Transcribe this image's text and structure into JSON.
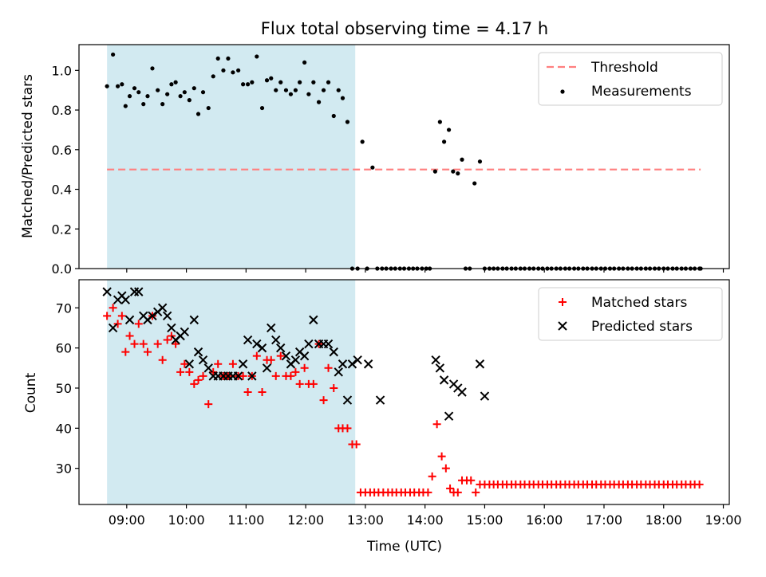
{
  "chart_data": {
    "title": "Flux total observing time = 4.17 h",
    "xlabel": "Time (UTC)",
    "x_tick_labels": [
      "09:00",
      "10:00",
      "11:00",
      "12:00",
      "13:00",
      "14:00",
      "15:00",
      "16:00",
      "17:00",
      "18:00",
      "19:00"
    ],
    "xlim_hours": [
      8.2,
      19.1
    ],
    "observing_window_hours": [
      8.67,
      12.83
    ],
    "colors": {
      "window": "#add8e6",
      "threshold": "#ff7f7f",
      "measurements": "#000000",
      "matched": "#ff0000",
      "predicted": "#000000"
    },
    "panels": [
      {
        "type": "scatter",
        "ylabel": "Matched/Predicted stars",
        "ylim": [
          0,
          1.13
        ],
        "y_ticks": [
          0.0,
          0.2,
          0.4,
          0.6,
          0.8,
          1.0
        ],
        "y_tick_labels": [
          "0.0",
          "0.2",
          "0.4",
          "0.6",
          "0.8",
          "1.0"
        ],
        "legend_position": "top-right",
        "threshold": {
          "name": "Threshold",
          "value": 0.5,
          "x_range": [
            8.67,
            18.62
          ]
        },
        "series": [
          {
            "name": "Measurements",
            "x": [
              8.67,
              8.77,
              8.85,
              8.92,
              8.98,
              9.05,
              9.13,
              9.2,
              9.28,
              9.35,
              9.43,
              9.52,
              9.6,
              9.68,
              9.75,
              9.82,
              9.9,
              9.97,
              10.05,
              10.13,
              10.2,
              10.28,
              10.37,
              10.45,
              10.53,
              10.62,
              10.7,
              10.78,
              10.87,
              10.95,
              11.03,
              11.1,
              11.18,
              11.27,
              11.35,
              11.42,
              11.5,
              11.58,
              11.67,
              11.75,
              11.83,
              11.9,
              11.98,
              12.05,
              12.13,
              12.22,
              12.3,
              12.38,
              12.47,
              12.55,
              12.62,
              12.7,
              12.78,
              12.87,
              12.95,
              13.03,
              13.12,
              13.2,
              13.28,
              13.35,
              13.43,
              13.5,
              13.58,
              13.65,
              13.73,
              13.8,
              13.87,
              13.95,
              14.02,
              14.08,
              14.17,
              14.25,
              14.32,
              14.4,
              14.47,
              14.55,
              14.62,
              14.68,
              14.75,
              14.83,
              14.92,
              15.0,
              15.08,
              15.15,
              15.22,
              15.3,
              15.37,
              15.45,
              15.52,
              15.6,
              15.67,
              15.75,
              15.82,
              15.9,
              15.97,
              16.05,
              16.12,
              16.2,
              16.27,
              16.35,
              16.42,
              16.5,
              16.57,
              16.65,
              16.72,
              16.8,
              16.87,
              16.95,
              17.02,
              17.1,
              17.17,
              17.25,
              17.32,
              17.4,
              17.47,
              17.55,
              17.62,
              17.7,
              17.77,
              17.85,
              17.92,
              18.0,
              18.07,
              18.15,
              18.22,
              18.3,
              18.37,
              18.45,
              18.52,
              18.6,
              18.62
            ],
            "y": [
              0.92,
              1.08,
              0.92,
              0.93,
              0.82,
              0.87,
              0.91,
              0.89,
              0.83,
              0.87,
              1.01,
              0.9,
              0.83,
              0.88,
              0.93,
              0.94,
              0.87,
              0.89,
              0.85,
              0.91,
              0.78,
              0.89,
              0.81,
              0.97,
              1.06,
              1.0,
              1.06,
              0.99,
              1.0,
              0.93,
              0.93,
              0.94,
              1.07,
              0.81,
              0.95,
              0.96,
              0.9,
              0.94,
              0.9,
              0.88,
              0.9,
              0.94,
              1.04,
              0.88,
              0.94,
              0.84,
              0.9,
              0.94,
              0.77,
              0.9,
              0.86,
              0.74,
              0.0,
              0.0,
              0.64,
              0.0,
              0.51,
              0.0,
              0.0,
              0.0,
              0.0,
              0.0,
              0.0,
              0.0,
              0.0,
              0.0,
              0.0,
              0.0,
              0.0,
              0.0,
              0.49,
              0.74,
              0.64,
              0.7,
              0.49,
              0.48,
              0.55,
              0.0,
              0.0,
              0.43,
              0.54,
              0.0,
              0.0,
              0.0,
              0.0,
              0.0,
              0.0,
              0.0,
              0.0,
              0.0,
              0.0,
              0.0,
              0.0,
              0.0,
              0.0,
              0.0,
              0.0,
              0.0,
              0.0,
              0.0,
              0.0,
              0.0,
              0.0,
              0.0,
              0.0,
              0.0,
              0.0,
              0.0,
              0.0,
              0.0,
              0.0,
              0.0,
              0.0,
              0.0,
              0.0,
              0.0,
              0.0,
              0.0,
              0.0,
              0.0,
              0.0,
              0.0,
              0.0,
              0.0,
              0.0,
              0.0,
              0.0,
              0.0,
              0.0,
              0.0,
              0.0
            ]
          }
        ]
      },
      {
        "type": "scatter",
        "ylabel": "Count",
        "ylim": [
          21,
          77
        ],
        "y_ticks": [
          30,
          40,
          50,
          60,
          70
        ],
        "y_tick_labels": [
          "30",
          "40",
          "50",
          "60",
          "70"
        ],
        "legend_position": "top-right",
        "series": [
          {
            "name": "Matched stars",
            "marker": "plus",
            "x": [
              8.67,
              8.77,
              8.85,
              8.92,
              8.98,
              9.05,
              9.13,
              9.2,
              9.28,
              9.35,
              9.43,
              9.52,
              9.6,
              9.68,
              9.75,
              9.82,
              9.9,
              9.97,
              10.05,
              10.13,
              10.2,
              10.28,
              10.37,
              10.45,
              10.53,
              10.62,
              10.7,
              10.78,
              10.87,
              10.95,
              11.03,
              11.1,
              11.18,
              11.27,
              11.35,
              11.42,
              11.5,
              11.58,
              11.67,
              11.75,
              11.83,
              11.9,
              11.98,
              12.05,
              12.13,
              12.22,
              12.3,
              12.38,
              12.47,
              12.55,
              12.62,
              12.7,
              12.78,
              12.85,
              12.92,
              13.0,
              13.08,
              13.15,
              13.22,
              13.3,
              13.38,
              13.45,
              13.52,
              13.6,
              13.67,
              13.75,
              13.82,
              13.9,
              13.97,
              14.05,
              14.12,
              14.2,
              14.28,
              14.35,
              14.42,
              14.48,
              14.55,
              14.62,
              14.7,
              14.77,
              14.85,
              14.92,
              15.0,
              15.08,
              15.15,
              15.22,
              15.3,
              15.37,
              15.45,
              15.52,
              15.6,
              15.67,
              15.75,
              15.82,
              15.9,
              15.97,
              16.05,
              16.12,
              16.2,
              16.27,
              16.35,
              16.42,
              16.5,
              16.57,
              16.65,
              16.72,
              16.8,
              16.87,
              16.95,
              17.02,
              17.1,
              17.17,
              17.25,
              17.32,
              17.4,
              17.47,
              17.55,
              17.62,
              17.7,
              17.77,
              17.85,
              17.92,
              18.0,
              18.07,
              18.15,
              18.22,
              18.3,
              18.37,
              18.45,
              18.52,
              18.6
            ],
            "y": [
              68,
              70,
              66,
              68,
              59,
              63,
              61,
              66,
              61,
              59,
              68,
              61,
              57,
              62,
              63,
              61,
              54,
              56,
              54,
              51,
              52,
              53,
              46,
              54,
              56,
              53,
              53,
              56,
              53,
              53,
              49,
              53,
              58,
              49,
              57,
              57,
              53,
              58,
              53,
              53,
              54,
              51,
              55,
              51,
              51,
              61,
              47,
              55,
              50,
              40,
              40,
              40,
              36,
              36,
              24,
              24,
              24,
              24,
              24,
              24,
              24,
              24,
              24,
              24,
              24,
              24,
              24,
              24,
              24,
              24,
              28,
              41,
              33,
              30,
              25,
              24,
              24,
              27,
              27,
              27,
              24,
              26,
              26,
              26,
              26,
              26,
              26,
              26,
              26,
              26,
              26,
              26,
              26,
              26,
              26,
              26,
              26,
              26,
              26,
              26,
              26,
              26,
              26,
              26,
              26,
              26,
              26,
              26,
              26,
              26,
              26,
              26,
              26,
              26,
              26,
              26,
              26,
              26,
              26,
              26,
              26,
              26,
              26,
              26,
              26,
              26,
              26,
              26,
              26,
              26,
              26
            ]
          },
          {
            "name": "Predicted stars",
            "marker": "x",
            "x": [
              8.67,
              8.77,
              8.85,
              8.92,
              8.98,
              9.05,
              9.13,
              9.2,
              9.28,
              9.35,
              9.43,
              9.52,
              9.6,
              9.68,
              9.75,
              9.82,
              9.9,
              9.97,
              10.05,
              10.13,
              10.2,
              10.28,
              10.37,
              10.45,
              10.53,
              10.62,
              10.7,
              10.78,
              10.87,
              10.95,
              11.03,
              11.1,
              11.18,
              11.27,
              11.35,
              11.42,
              11.5,
              11.58,
              11.67,
              11.75,
              11.83,
              11.9,
              11.98,
              12.05,
              12.13,
              12.22,
              12.3,
              12.38,
              12.47,
              12.55,
              12.62,
              12.7,
              12.78,
              12.87,
              13.05,
              13.25,
              14.18,
              14.25,
              14.32,
              14.4,
              14.48,
              14.55,
              14.62,
              14.92,
              15.0
            ],
            "y": [
              74,
              65,
              72,
              73,
              72,
              67,
              74,
              74,
              68,
              67,
              68,
              69,
              70,
              68,
              65,
              62,
              63,
              64,
              56,
              67,
              59,
              57,
              55,
              53,
              53,
              53,
              53,
              53,
              53,
              56,
              62,
              53,
              61,
              60,
              55,
              65,
              62,
              60,
              58,
              56,
              57,
              59,
              58,
              61,
              67,
              61,
              61,
              61,
              59,
              54,
              56,
              47,
              56,
              57,
              56,
              47,
              57,
              55,
              52,
              43,
              51,
              50,
              49,
              56,
              48
            ]
          }
        ]
      }
    ]
  }
}
